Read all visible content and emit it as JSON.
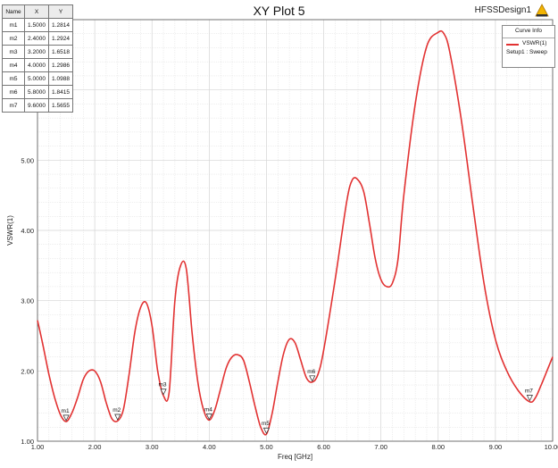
{
  "plot": {
    "title": "XY Plot 5",
    "design_name": "HFSSDesign1"
  },
  "marker_table": {
    "headers": [
      "Name",
      "X",
      "Y"
    ],
    "rows": [
      [
        "m1",
        "1.5000",
        "1.2814"
      ],
      [
        "m2",
        "2.4000",
        "1.2924"
      ],
      [
        "m3",
        "3.2000",
        "1.6518"
      ],
      [
        "m4",
        "4.0000",
        "1.2986"
      ],
      [
        "m5",
        "5.0000",
        "1.0988"
      ],
      [
        "m6",
        "5.8000",
        "1.8415"
      ],
      [
        "m7",
        "9.6000",
        "1.5655"
      ]
    ]
  },
  "legend": {
    "title": "Curve Info",
    "entry_name": "VSWR(1)",
    "entry_sub": "Setup1 : Sweep"
  },
  "colors": {
    "curve": "#e23232",
    "grid": "#d4d4d4",
    "axis": "#555555"
  },
  "chart_data": {
    "type": "line",
    "title": "XY Plot 5",
    "xlabel": "Freq [GHz]",
    "ylabel": "VSWR(1)",
    "xlim": [
      1.0,
      10.0
    ],
    "ylim": [
      1.0,
      7.0
    ],
    "x_ticks": [
      "1.00",
      "2.00",
      "3.00",
      "4.00",
      "5.00",
      "6.00",
      "7.00",
      "8.00",
      "9.00",
      "10.00"
    ],
    "y_ticks": [
      "1.00",
      "2.00",
      "3.00",
      "4.00",
      "5.00",
      "6.00"
    ],
    "grid": true,
    "legend_position": "top-right",
    "series": [
      {
        "name": "VSWR(1)",
        "x": [
          1.0,
          1.1,
          1.2,
          1.3,
          1.4,
          1.5,
          1.6,
          1.7,
          1.8,
          1.9,
          2.0,
          2.1,
          2.2,
          2.3,
          2.4,
          2.5,
          2.6,
          2.7,
          2.8,
          2.9,
          3.0,
          3.1,
          3.2,
          3.3,
          3.4,
          3.5,
          3.6,
          3.7,
          3.8,
          3.9,
          4.0,
          4.1,
          4.2,
          4.3,
          4.4,
          4.5,
          4.6,
          4.7,
          4.8,
          4.9,
          5.0,
          5.1,
          5.2,
          5.3,
          5.4,
          5.5,
          5.6,
          5.7,
          5.8,
          5.9,
          6.0,
          6.2,
          6.4,
          6.5,
          6.6,
          6.7,
          6.8,
          6.9,
          7.0,
          7.1,
          7.2,
          7.3,
          7.4,
          7.6,
          7.8,
          8.0,
          8.1,
          8.2,
          8.4,
          8.6,
          8.8,
          9.0,
          9.2,
          9.4,
          9.6,
          9.7,
          9.8,
          9.9,
          10.0
        ],
        "y": [
          2.72,
          2.35,
          1.95,
          1.62,
          1.38,
          1.28,
          1.4,
          1.62,
          1.88,
          2.0,
          2.0,
          1.85,
          1.55,
          1.32,
          1.29,
          1.45,
          1.95,
          2.55,
          2.9,
          2.97,
          2.65,
          2.0,
          1.65,
          1.7,
          3.0,
          3.5,
          3.45,
          2.55,
          1.85,
          1.45,
          1.3,
          1.45,
          1.75,
          2.05,
          2.2,
          2.23,
          2.15,
          1.85,
          1.5,
          1.2,
          1.1,
          1.4,
          1.85,
          2.25,
          2.45,
          2.4,
          2.15,
          1.9,
          1.84,
          1.95,
          2.3,
          3.3,
          4.4,
          4.72,
          4.72,
          4.55,
          4.1,
          3.6,
          3.3,
          3.2,
          3.25,
          3.6,
          4.5,
          5.8,
          6.62,
          6.82,
          6.8,
          6.55,
          5.6,
          4.4,
          3.25,
          2.45,
          2.0,
          1.72,
          1.56,
          1.62,
          1.8,
          2.0,
          2.2
        ]
      }
    ],
    "markers": [
      {
        "name": "m1",
        "x": 1.5,
        "y": 1.2814
      },
      {
        "name": "m2",
        "x": 2.4,
        "y": 1.2924
      },
      {
        "name": "m3",
        "x": 3.2,
        "y": 1.6518
      },
      {
        "name": "m4",
        "x": 4.0,
        "y": 1.2986
      },
      {
        "name": "m5",
        "x": 5.0,
        "y": 1.0988
      },
      {
        "name": "m6",
        "x": 5.8,
        "y": 1.8415
      },
      {
        "name": "m7",
        "x": 9.6,
        "y": 1.5655
      }
    ]
  }
}
